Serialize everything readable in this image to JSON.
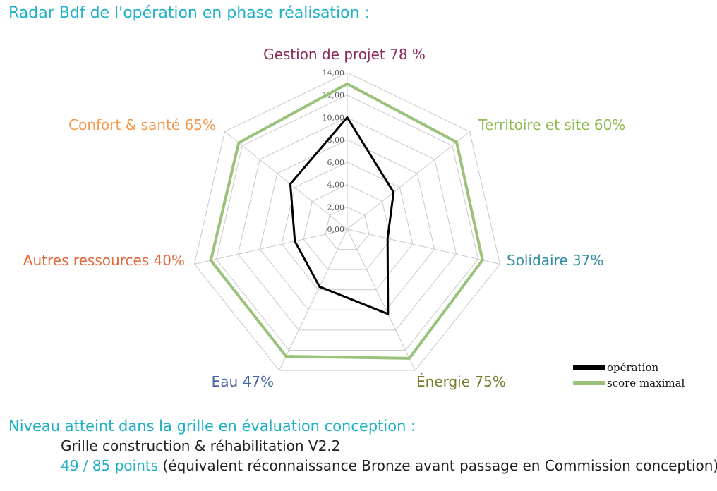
{
  "title": "Radar Bdf de l'opération en phase réalisation :",
  "chart_data": {
    "type": "radar",
    "categories": [
      {
        "name": "Gestion de projet",
        "percent": "78 %",
        "color": "#8b2a5a"
      },
      {
        "name": "Territoire et site",
        "percent": "60%",
        "color": "#8dbb4e"
      },
      {
        "name": "Solidaire",
        "percent": "37%",
        "color": "#2f8da0"
      },
      {
        "name": "Énergie",
        "percent": "75%",
        "color": "#7a7a2e"
      },
      {
        "name": "Eau",
        "percent": "47%",
        "color": "#4763a8"
      },
      {
        "name": "Autres ressources",
        "percent": "40%",
        "color": "#e0673a"
      },
      {
        "name": "Confort & santé",
        "percent": "65%",
        "color": "#f5984a"
      }
    ],
    "r_ticks": [
      "0,00",
      "2,00",
      "4,00",
      "6,00",
      "8,00",
      "10,00",
      "12,00",
      "14,00"
    ],
    "rlim": [
      0,
      14
    ],
    "series": [
      {
        "name": "opération",
        "color": "#000000",
        "values": [
          10.0,
          5.3,
          3.7,
          8.4,
          5.7,
          4.8,
          6.5
        ]
      },
      {
        "name": "score maximal",
        "color": "#9bc27a",
        "values": [
          13.0,
          12.5,
          12.4,
          12.8,
          12.6,
          12.5,
          12.4
        ]
      }
    ]
  },
  "summary": {
    "niveau": "Niveau atteint dans la grille en évaluation conception :",
    "grille": "Grille construction & réhabilitation V2.2",
    "points": "49 / 85 points",
    "note": "(équivalent réconnaissance Bronze avant passage en Commission conception)"
  }
}
